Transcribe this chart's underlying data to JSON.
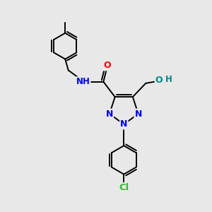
{
  "background_color": "#e8e8e8",
  "atom_colors": {
    "C": "#000000",
    "N": "#0000ee",
    "O": "#ff0000",
    "Cl": "#33bb33",
    "H": "#555555",
    "OH": "#008888"
  },
  "bond_color": "#000000",
  "bond_width": 1.4,
  "font_size_atoms": 8.5,
  "figsize": [
    3.0,
    3.0
  ],
  "dpi": 100
}
